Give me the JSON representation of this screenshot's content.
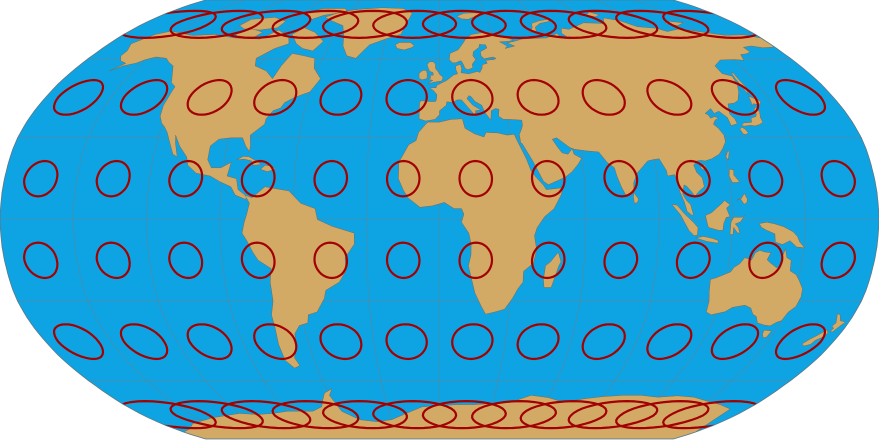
{
  "map": {
    "projection": "Robinson",
    "colors": {
      "ocean": "#0EA4E4",
      "land": "#D2AA66",
      "border": "#7A6A55",
      "graticule": "#7A7A7A",
      "indicatrix": "#A30000"
    },
    "graticule_step_degrees": 30,
    "indicatrix_grid": {
      "latitudes": [
        75,
        45,
        15,
        -15,
        -45,
        -75
      ],
      "longitudes": [
        -165,
        -135,
        -105,
        -75,
        -45,
        -15,
        15,
        45,
        75,
        105,
        135,
        165
      ]
    }
  }
}
